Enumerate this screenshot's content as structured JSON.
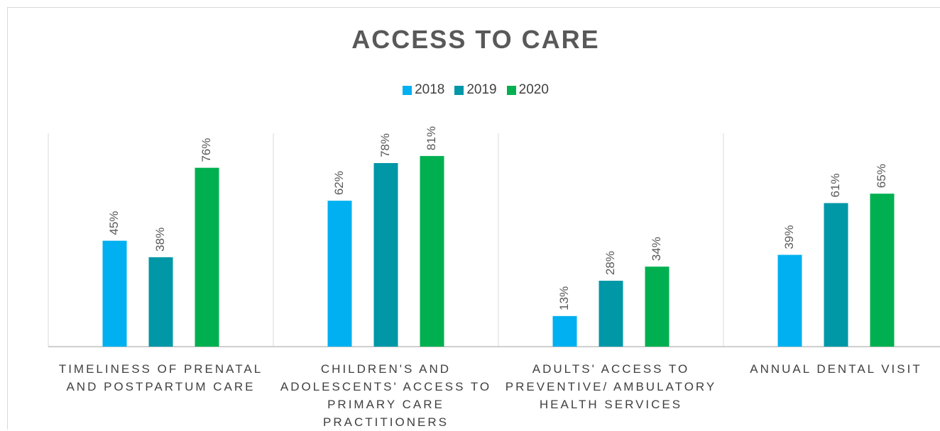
{
  "chart_data": {
    "type": "bar",
    "title": "ACCESS TO CARE",
    "categories": [
      [
        "TIMELINESS OF PRENATAL",
        "AND POSTPARTUM CARE"
      ],
      [
        "CHILDREN'S AND",
        "ADOLESCENTS' ACCESS TO",
        "PRIMARY CARE",
        "PRACTITIONERS"
      ],
      [
        "ADULTS' ACCESS TO",
        "PREVENTIVE/ AMBULATORY",
        "HEALTH SERVICES"
      ],
      [
        "ANNUAL DENTAL VISIT"
      ]
    ],
    "series": [
      {
        "name": "2018",
        "color": "#00b0f0",
        "values": [
          45,
          62,
          13,
          39
        ],
        "labels": [
          "45%",
          "62%",
          "13%",
          "39%"
        ]
      },
      {
        "name": "2019",
        "color": "#0097a7",
        "values": [
          38,
          78,
          28,
          61
        ],
        "labels": [
          "38%",
          "78%",
          "28%",
          "61%"
        ]
      },
      {
        "name": "2020",
        "color": "#00b050",
        "values": [
          76,
          81,
          34,
          65
        ],
        "labels": [
          "76%",
          "81%",
          "34%",
          "65%"
        ]
      }
    ],
    "ylim": [
      0,
      100
    ],
    "grid": false,
    "legend_position": "top"
  }
}
